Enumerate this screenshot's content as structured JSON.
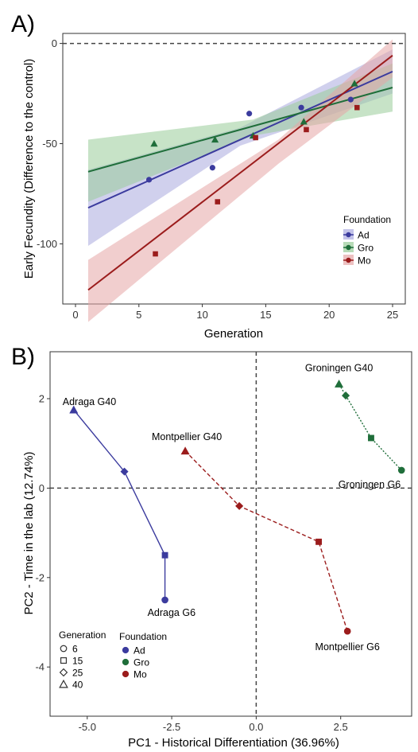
{
  "chart_data": [
    {
      "panel": "A)",
      "type": "scatter",
      "xlabel": "Generation",
      "ylabel": "Early Fecundity (Difference to the control)",
      "xlim": [
        0,
        25
      ],
      "ylim": [
        -130,
        5
      ],
      "xticks": [
        "0",
        "5",
        "10",
        "15",
        "20",
        "25"
      ],
      "yticks": [
        "0",
        "-50",
        "-100"
      ],
      "reference_line_y": 0,
      "grid": false,
      "legend": {
        "title": "Foundation",
        "position": "bottom-right"
      },
      "series": [
        {
          "name": "Ad",
          "color": "#3b3b9e",
          "band_color": "#a9a9df",
          "marker": "circle",
          "points": [
            [
              5.8,
              -68
            ],
            [
              10.8,
              -62
            ],
            [
              13.7,
              -35
            ],
            [
              17.8,
              -32
            ],
            [
              21.7,
              -28
            ]
          ],
          "fit": {
            "x": [
              1,
              25
            ],
            "y": [
              -82,
              -14
            ]
          },
          "band": {
            "x": [
              1,
              13,
              25
            ],
            "upper": [
              -63,
              -42,
              -3
            ],
            "lower": [
              -101,
              -51,
              -25
            ]
          }
        },
        {
          "name": "Gro",
          "color": "#1f6e3a",
          "band_color": "#99cc99",
          "marker": "triangle",
          "points": [
            [
              6.2,
              -50
            ],
            [
              11,
              -48
            ],
            [
              14,
              -46
            ],
            [
              18,
              -39
            ],
            [
              22,
              -20
            ]
          ],
          "fit": {
            "x": [
              1,
              25
            ],
            "y": [
              -64,
              -22
            ]
          },
          "band": {
            "x": [
              1,
              14,
              25
            ],
            "upper": [
              -48,
              -38,
              -10
            ],
            "lower": [
              -79,
              -46,
              -34
            ]
          }
        },
        {
          "name": "Mo",
          "color": "#9b1c1c",
          "band_color": "#e6a6a6",
          "marker": "square",
          "points": [
            [
              6.3,
              -105
            ],
            [
              11.2,
              -79
            ],
            [
              14.2,
              -47
            ],
            [
              18.2,
              -43
            ],
            [
              22.2,
              -32
            ]
          ],
          "fit": {
            "x": [
              1,
              25
            ],
            "y": [
              -123,
              -6
            ]
          },
          "band": {
            "x": [
              1,
              16,
              25
            ],
            "upper": [
              -108,
              -48,
              2
            ],
            "lower": [
              -139,
              -60,
              -17
            ]
          }
        }
      ]
    },
    {
      "panel": "B)",
      "type": "scatter",
      "xlabel": "PC1 - Historical Differentiation (36.96%)",
      "ylabel": "PC2 - Time in the lab (12.74%)",
      "xlim": [
        -6.1,
        4.6
      ],
      "ylim": [
        -5.1,
        3.05
      ],
      "xticks": [
        -5.0,
        -2.5,
        0.0,
        2.5
      ],
      "xtick_labels": [
        "-5.0",
        "-2.5",
        "0.0",
        "2.5"
      ],
      "yticks": [
        2,
        0,
        -2,
        -4
      ],
      "ytick_labels": [
        "2",
        "0",
        "-2",
        "-4"
      ],
      "reference_lines": {
        "x": 0,
        "y": 0
      },
      "grid": false,
      "legend_generation": {
        "title": "Generation",
        "entries": [
          {
            "label": "6",
            "marker": "circle"
          },
          {
            "label": "15",
            "marker": "square"
          },
          {
            "label": "25",
            "marker": "diamond"
          },
          {
            "label": "40",
            "marker": "triangle"
          }
        ]
      },
      "legend_foundation": {
        "title": "Foundation",
        "entries": [
          {
            "label": "Ad",
            "color": "#3b3b9e"
          },
          {
            "label": "Gro",
            "color": "#1f6e3a"
          },
          {
            "label": "Mo",
            "color": "#9b1c1c"
          }
        ]
      },
      "series": [
        {
          "name": "Ad",
          "color": "#3b3b9e",
          "line_style": "solid",
          "points": [
            {
              "gen": 6,
              "marker": "circle",
              "x": -2.7,
              "y": -2.5
            },
            {
              "gen": 15,
              "marker": "square",
              "x": -2.7,
              "y": -1.5
            },
            {
              "gen": 25,
              "marker": "diamond",
              "x": -3.9,
              "y": 0.37
            },
            {
              "gen": 40,
              "marker": "triangle",
              "x": -5.4,
              "y": 1.75
            }
          ],
          "labels": [
            {
              "text": "Adraga G40",
              "x": -5.4,
              "y": 1.75,
              "anchor": "start",
              "dx": -14,
              "dy": -6
            },
            {
              "text": "Adraga G6",
              "x": -2.7,
              "y": -2.5,
              "anchor": "start",
              "dx": -22,
              "dy": 20
            }
          ]
        },
        {
          "name": "Gro",
          "color": "#1f6e3a",
          "line_style": "dotted",
          "points": [
            {
              "gen": 6,
              "marker": "circle",
              "x": 4.3,
              "y": 0.4
            },
            {
              "gen": 15,
              "marker": "square",
              "x": 3.4,
              "y": 1.12
            },
            {
              "gen": 25,
              "marker": "diamond",
              "x": 2.65,
              "y": 2.07
            },
            {
              "gen": 40,
              "marker": "triangle",
              "x": 2.45,
              "y": 2.33
            }
          ],
          "labels": [
            {
              "text": "Groningen G40",
              "x": 2.45,
              "y": 2.33,
              "anchor": "middle",
              "dx": 0,
              "dy": -16
            },
            {
              "text": "Groningen G6",
              "x": 4.3,
              "y": 0.4,
              "anchor": "end",
              "dx": -1,
              "dy": 22
            }
          ]
        },
        {
          "name": "Mo",
          "color": "#9b1c1c",
          "line_style": "dashed",
          "points": [
            {
              "gen": 6,
              "marker": "circle",
              "x": 2.7,
              "y": -3.2
            },
            {
              "gen": 15,
              "marker": "square",
              "x": 1.85,
              "y": -1.2
            },
            {
              "gen": 25,
              "marker": "diamond",
              "x": -0.5,
              "y": -0.4
            },
            {
              "gen": 40,
              "marker": "triangle",
              "x": -2.1,
              "y": 0.83
            }
          ],
          "labels": [
            {
              "text": "Montpellier G40",
              "x": -2.1,
              "y": 0.83,
              "anchor": "middle",
              "dx": 2,
              "dy": -14
            },
            {
              "text": "Montpellier G6",
              "x": 2.7,
              "y": -3.2,
              "anchor": "middle",
              "dx": 0,
              "dy": 24
            }
          ]
        }
      ]
    }
  ]
}
